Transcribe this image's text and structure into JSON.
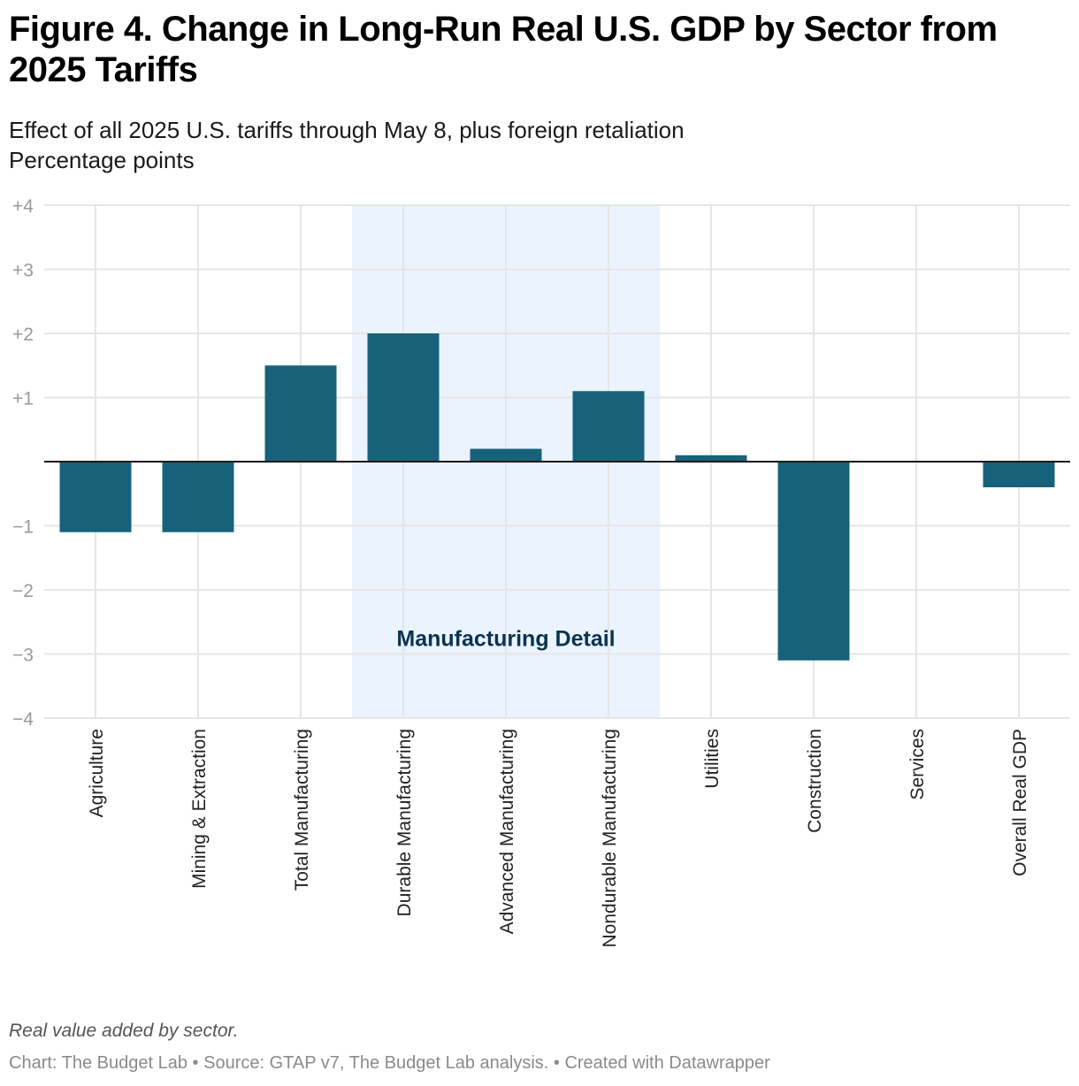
{
  "header": {
    "title": "Figure 4. Change in Long-Run Real U.S. GDP by Sector from 2025 Tariffs",
    "subtitle_line1": "Effect of all 2025 U.S. tariffs through May 8, plus foreign retaliation",
    "subtitle_line2": "Percentage points"
  },
  "footer": {
    "notes": "Real value added by sector.",
    "credits": "Chart: The Budget Lab • Source: GTAP v7, The Budget Lab analysis. • Created with Datawrapper"
  },
  "colors": {
    "bar": "#17627a",
    "highlight_band": "#eaf3fe",
    "annotation_text": "#0b3350",
    "grid": "#e5e5e5",
    "zero_line": "#1a1a1a",
    "tick_text": "#9a9a9a"
  },
  "chart_data": {
    "type": "bar",
    "title": "Figure 4. Change in Long-Run Real U.S. GDP by Sector from 2025 Tariffs",
    "xlabel": "",
    "ylabel": "Percentage points",
    "ylim": [
      -4,
      4
    ],
    "yticks": [
      4,
      3,
      2,
      1,
      0,
      -1,
      -2,
      -3,
      -4
    ],
    "ytick_labels": [
      "+4",
      "+3",
      "+2",
      "+1",
      "",
      "−1",
      "−2",
      "−3",
      "−4"
    ],
    "grid": true,
    "categories": [
      "Agriculture",
      "Mining & Extraction",
      "Total Manufacturing",
      "Durable Manufacturing",
      "Advanced Manufacturing",
      "Nondurable Manufacturing",
      "Utilities",
      "Construction",
      "Services",
      "Overall Real GDP"
    ],
    "values": [
      -1.1,
      -1.1,
      1.5,
      2.0,
      0.2,
      1.1,
      0.1,
      -3.1,
      0.0,
      -0.4
    ],
    "highlight_region": {
      "from_category": "Durable Manufacturing",
      "to_category": "Nondurable Manufacturing",
      "label": "Manufacturing Detail",
      "label_y_value": -2.75
    }
  }
}
